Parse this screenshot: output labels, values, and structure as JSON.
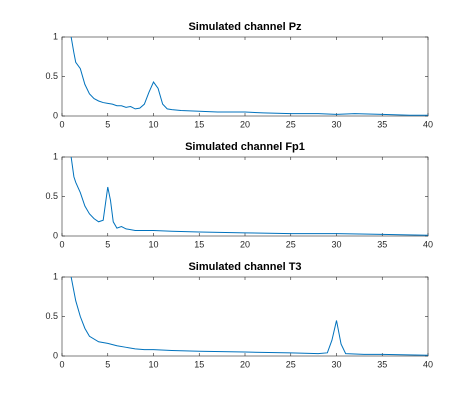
{
  "chart_data": [
    {
      "type": "line",
      "title": "Simulated channel Pz",
      "color": "#0072bd",
      "x": [
        1,
        1.3,
        1.5,
        2,
        2.5,
        3,
        3.5,
        4,
        4.5,
        5,
        5.5,
        6,
        6.5,
        7,
        7.5,
        8,
        8.5,
        9,
        9.5,
        10,
        10.5,
        11,
        11.5,
        12,
        13,
        15,
        17,
        20,
        22,
        25,
        28,
        30,
        32,
        35,
        38,
        40
      ],
      "values": [
        1.0,
        0.8,
        0.68,
        0.6,
        0.4,
        0.28,
        0.22,
        0.19,
        0.17,
        0.16,
        0.15,
        0.13,
        0.13,
        0.11,
        0.12,
        0.09,
        0.1,
        0.15,
        0.3,
        0.43,
        0.35,
        0.15,
        0.09,
        0.08,
        0.07,
        0.06,
        0.05,
        0.05,
        0.04,
        0.03,
        0.03,
        0.02,
        0.03,
        0.02,
        0.01,
        0.01
      ],
      "xlim": [
        0,
        40
      ],
      "ylim": [
        0,
        1
      ],
      "xticks": [
        0,
        5,
        10,
        15,
        20,
        25,
        30,
        35,
        40
      ],
      "yticks": [
        0,
        0.5,
        1
      ]
    },
    {
      "type": "line",
      "title": "Simulated channel Fp1",
      "color": "#0072bd",
      "x": [
        1,
        1.3,
        1.5,
        2,
        2.5,
        3,
        3.5,
        4,
        4.5,
        5,
        5.3,
        5.6,
        6,
        6.5,
        7,
        8,
        9,
        10,
        12,
        15,
        20,
        25,
        30,
        35,
        40
      ],
      "values": [
        1.0,
        0.75,
        0.68,
        0.55,
        0.38,
        0.28,
        0.22,
        0.18,
        0.2,
        0.62,
        0.45,
        0.18,
        0.1,
        0.12,
        0.09,
        0.07,
        0.07,
        0.07,
        0.06,
        0.05,
        0.04,
        0.03,
        0.03,
        0.02,
        0.01
      ],
      "xlim": [
        0,
        40
      ],
      "ylim": [
        0,
        1
      ],
      "xticks": [
        0,
        5,
        10,
        15,
        20,
        25,
        30,
        35,
        40
      ],
      "yticks": [
        0,
        0.5,
        1
      ]
    },
    {
      "type": "line",
      "title": "Simulated channel T3",
      "color": "#0072bd",
      "x": [
        1,
        1.5,
        2,
        2.5,
        3,
        4,
        5,
        6,
        7,
        8,
        9,
        10,
        12,
        15,
        20,
        25,
        28,
        29,
        29.5,
        30,
        30.5,
        31,
        33,
        35,
        40
      ],
      "values": [
        1.0,
        0.7,
        0.5,
        0.35,
        0.25,
        0.18,
        0.16,
        0.13,
        0.11,
        0.09,
        0.08,
        0.08,
        0.07,
        0.06,
        0.05,
        0.04,
        0.03,
        0.04,
        0.2,
        0.45,
        0.15,
        0.03,
        0.02,
        0.02,
        0.01
      ],
      "xlim": [
        0,
        40
      ],
      "ylim": [
        0,
        1
      ],
      "xticks": [
        0,
        5,
        10,
        15,
        20,
        25,
        30,
        35,
        40
      ],
      "yticks": [
        0,
        0.5,
        1
      ]
    }
  ]
}
